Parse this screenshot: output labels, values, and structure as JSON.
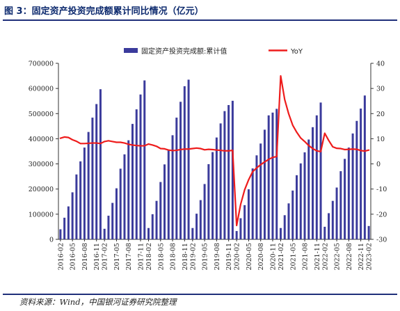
{
  "title": "图 3：固定资产投资完成额累计同比情况（亿元）",
  "source": "资料来源：Wind，中国银河证券研究院整理",
  "colors": {
    "bar": "#3b3b9c",
    "line": "#ee1c1c",
    "title": "#0d2a6e"
  },
  "chart_data": {
    "type": "bar",
    "title": "",
    "legend": [
      {
        "name": "固定资产投资完成额:累计值",
        "kind": "bar"
      },
      {
        "name": "YoY",
        "kind": "line"
      }
    ],
    "legend_position": "top-center",
    "grid": false,
    "y_left": {
      "min": 0,
      "max": 700000,
      "ticks": [
        "0",
        "100000",
        "200000",
        "300000",
        "400000",
        "500000",
        "600000",
        "700000"
      ]
    },
    "y_right": {
      "min": -30,
      "max": 40,
      "ticks": [
        "-30",
        "-20",
        "-10",
        "0",
        "10",
        "20",
        "30",
        "40"
      ]
    },
    "x_tick_labels": [
      "2016-02",
      "2016-05",
      "2016-08",
      "2016-11",
      "2017-02",
      "2017-05",
      "2017-08",
      "2017-11",
      "2018-02",
      "2018-05",
      "2018-08",
      "2018-11",
      "2019-02",
      "2019-05",
      "2019-08",
      "2019-11",
      "2020-02",
      "2020-05",
      "2020-08",
      "2020-11",
      "2021-02",
      "2021-05",
      "2021-08",
      "2021-11",
      "2022-02",
      "2022-05",
      "2022-08",
      "2022-11",
      "2023-02"
    ],
    "categories": [
      "2016-02",
      "2016-03",
      "2016-04",
      "2016-05",
      "2016-06",
      "2016-07",
      "2016-08",
      "2016-09",
      "2016-10",
      "2016-11",
      "2016-12",
      "2017-02",
      "2017-03",
      "2017-04",
      "2017-05",
      "2017-06",
      "2017-07",
      "2017-08",
      "2017-09",
      "2017-10",
      "2017-11",
      "2017-12",
      "2018-02",
      "2018-03",
      "2018-04",
      "2018-05",
      "2018-06",
      "2018-07",
      "2018-08",
      "2018-09",
      "2018-10",
      "2018-11",
      "2018-12",
      "2019-02",
      "2019-03",
      "2019-04",
      "2019-05",
      "2019-06",
      "2019-07",
      "2019-08",
      "2019-09",
      "2019-10",
      "2019-11",
      "2019-12",
      "2020-02",
      "2020-03",
      "2020-04",
      "2020-05",
      "2020-06",
      "2020-07",
      "2020-08",
      "2020-09",
      "2020-10",
      "2020-11",
      "2020-12",
      "2021-02",
      "2021-03",
      "2021-04",
      "2021-05",
      "2021-06",
      "2021-07",
      "2021-08",
      "2021-09",
      "2021-10",
      "2021-11",
      "2021-12",
      "2022-02",
      "2022-03",
      "2022-04",
      "2022-05",
      "2022-06",
      "2022-07",
      "2022-08",
      "2022-09",
      "2022-10",
      "2022-11",
      "2022-12",
      "2023-02"
    ],
    "series": [
      {
        "name": "固定资产投资完成额:累计值",
        "type": "bar",
        "axis": "left",
        "values": [
          40000,
          86000,
          131000,
          187000,
          258000,
          310000,
          365000,
          427000,
          484000,
          538000,
          597000,
          42000,
          94000,
          145000,
          203000,
          281000,
          338000,
          394000,
          459000,
          517000,
          576000,
          632000,
          45000,
          100000,
          153000,
          228000,
          298000,
          354000,
          414000,
          484000,
          547000,
          609000,
          635000,
          45000,
          102000,
          156000,
          220000,
          299000,
          347000,
          405000,
          461000,
          510000,
          534000,
          551000,
          33000,
          84000,
          136000,
          199000,
          282000,
          334000,
          381000,
          436000,
          493000,
          504000,
          519000,
          45000,
          96000,
          143000,
          194000,
          255000,
          302000,
          346000,
          397000,
          446000,
          493000,
          544000,
          50000,
          104000,
          153000,
          206000,
          271000,
          320000,
          365000,
          421000,
          471000,
          520000,
          572000,
          53000
        ]
      },
      {
        "name": "YoY",
        "type": "line",
        "axis": "right",
        "values": [
          10.2,
          10.7,
          10.5,
          9.6,
          9.0,
          8.1,
          8.1,
          8.2,
          8.3,
          8.3,
          8.1,
          8.9,
          9.2,
          8.9,
          8.6,
          8.6,
          8.3,
          7.8,
          7.5,
          7.3,
          7.2,
          7.2,
          7.9,
          7.5,
          7.0,
          6.1,
          6.0,
          5.5,
          5.3,
          5.4,
          5.7,
          5.9,
          5.9,
          6.1,
          6.3,
          6.1,
          5.6,
          5.8,
          5.7,
          5.5,
          5.4,
          5.2,
          5.2,
          5.4,
          -24.5,
          -16.1,
          -10.3,
          -6.3,
          -3.1,
          -1.6,
          -0.3,
          0.8,
          1.8,
          2.6,
          2.9,
          35.0,
          25.6,
          19.9,
          15.4,
          12.6,
          10.3,
          8.9,
          7.3,
          6.1,
          5.2,
          4.9,
          12.2,
          9.3,
          6.8,
          6.2,
          6.1,
          5.7,
          5.8,
          5.9,
          5.8,
          5.3,
          5.1,
          5.5
        ]
      }
    ]
  }
}
